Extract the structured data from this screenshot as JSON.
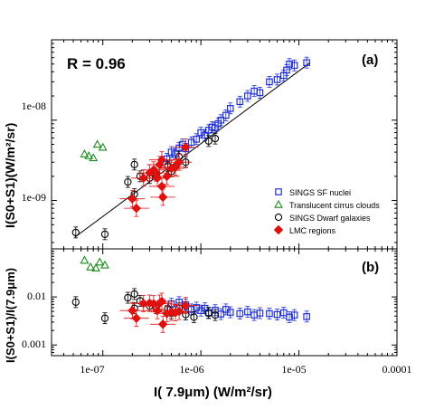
{
  "chart_data": [
    {
      "panel": "(a)",
      "type": "scatter",
      "annotation": "R = 0.96",
      "xscale": "log",
      "yscale": "log",
      "xlim": [
        3e-08,
        0.0001
      ],
      "ylim": [
        2.5e-10,
        1e-07
      ],
      "ylabel": "I(S0+S1)(W/m²/sr)",
      "yticks": [
        {
          "v": 1e-09,
          "label": "1e-09"
        },
        {
          "v": 1e-08,
          "label": "1e-08"
        }
      ],
      "fit_line": {
        "x": [
          5.2e-08,
          1.3e-05
        ],
        "y": [
          3.5e-10,
          5.2e-08
        ]
      },
      "legend": {
        "position": "lower-right",
        "entries": [
          {
            "label": "SINGS SF nuclei",
            "marker": "square",
            "color": "#1f2fd6"
          },
          {
            "label": "Translucent cirrus clouds",
            "marker": "triangle",
            "color": "#1a8c1a"
          },
          {
            "label": "SINGS Dwarf galaxies",
            "marker": "circle",
            "color": "#000000"
          },
          {
            "label": "LMC regions",
            "marker": "diamond",
            "color": "#e0100f"
          }
        ]
      },
      "series": [
        {
          "name": "SINGS SF nuclei",
          "marker": "square",
          "color": "#1f2fd6",
          "points": [
            [
              4.5e-07,
              3.3e-09
            ],
            [
              5e-07,
              4e-09
            ],
            [
              5.5e-07,
              3.8e-09
            ],
            [
              6e-07,
              4.5e-09
            ],
            [
              6.5e-07,
              5e-09
            ],
            [
              7e-07,
              4.4e-09
            ],
            [
              8e-07,
              5.3e-09
            ],
            [
              9e-07,
              5.8e-09
            ],
            [
              1e-06,
              7e-09
            ],
            [
              1.1e-06,
              6.5e-09
            ],
            [
              1.2e-06,
              7.5e-09
            ],
            [
              1.3e-06,
              8.2e-09
            ],
            [
              1.4e-06,
              8e-09
            ],
            [
              1.5e-06,
              9e-09
            ],
            [
              1.6e-06,
              1e-08
            ],
            [
              1.8e-06,
              1.15e-08
            ],
            [
              2e-06,
              1.4e-08
            ],
            [
              2.5e-06,
              1.7e-08
            ],
            [
              3e-06,
              2e-08
            ],
            [
              3.5e-06,
              2.3e-08
            ],
            [
              4e-06,
              2.2e-08
            ],
            [
              5e-06,
              3e-08
            ],
            [
              6e-06,
              3.2e-08
            ],
            [
              7e-06,
              3.6e-08
            ],
            [
              7.5e-06,
              4.2e-08
            ],
            [
              8e-06,
              5e-08
            ],
            [
              9e-06,
              4.8e-08
            ],
            [
              1.2e-05,
              5.2e-08
            ]
          ]
        },
        {
          "name": "Translucent cirrus clouds",
          "marker": "triangle",
          "color": "#1a8c1a",
          "points": [
            [
              6.5e-08,
              3.8e-09
            ],
            [
              7.2e-08,
              3.6e-09
            ],
            [
              8e-08,
              3.4e-09
            ],
            [
              8.8e-08,
              5e-09
            ],
            [
              1e-07,
              4.6e-09
            ]
          ]
        },
        {
          "name": "SINGS Dwarf galaxies",
          "marker": "circle",
          "color": "#000000",
          "points": [
            [
              5.3e-08,
              4e-10
            ],
            [
              1.05e-07,
              3.8e-10
            ],
            [
              1.8e-07,
              1.7e-09
            ],
            [
              2.1e-07,
              2.8e-09
            ],
            [
              2.4e-07,
              2e-09
            ],
            [
              3e-07,
              1.9e-09
            ],
            [
              3.5e-07,
              2.1e-09
            ],
            [
              4.6e-07,
              2.7e-09
            ],
            [
              5e-07,
              2.3e-09
            ],
            [
              6e-07,
              3.5e-09
            ],
            [
              7e-07,
              3e-09
            ],
            [
              1.2e-06,
              5.5e-09
            ],
            [
              1.4e-06,
              5.9e-09
            ],
            [
              2.1e-07,
              1.2e-09
            ]
          ]
        },
        {
          "name": "LMC regions",
          "marker": "diamond",
          "color": "#e0100f",
          "points": [
            [
              2.2e-07,
              8e-10
            ],
            [
              2e-07,
              1.05e-09
            ],
            [
              2.6e-07,
              1.9e-09
            ],
            [
              3e-07,
              2.2e-09
            ],
            [
              3.3e-07,
              2.4e-09
            ],
            [
              3.5e-07,
              2.2e-09
            ],
            [
              3.8e-07,
              2.8e-09
            ],
            [
              4e-07,
              3.2e-09
            ],
            [
              4e-07,
              1.5e-09
            ],
            [
              4.1e-07,
              1.1e-09
            ],
            [
              4.5e-07,
              2e-09
            ],
            [
              5e-07,
              2.5e-09
            ],
            [
              5.5e-07,
              2.6e-09
            ],
            [
              6e-07,
              3e-09
            ],
            [
              7e-07,
              4.6e-09
            ],
            [
              3.6e-07,
              1.9e-09
            ]
          ]
        }
      ]
    },
    {
      "panel": "(b)",
      "type": "scatter",
      "xscale": "log",
      "yscale": "log",
      "xlim": [
        3e-08,
        0.0001
      ],
      "ylim": [
        0.0006,
        0.1
      ],
      "xlabel": "I( 7.9μm) (W/m²/sr)",
      "ylabel": "I(S0+S1)/I(7.9μm)",
      "xticks": [
        {
          "v": 1e-07,
          "label": "1e-07"
        },
        {
          "v": 1e-06,
          "label": "1e-06"
        },
        {
          "v": 1e-05,
          "label": "1e-05"
        },
        {
          "v": 0.0001,
          "label": "0.0001"
        }
      ],
      "yticks": [
        {
          "v": 0.001,
          "label": "0.001"
        },
        {
          "v": 0.01,
          "label": "0.01"
        }
      ],
      "series": [
        {
          "name": "SINGS SF nuclei",
          "marker": "square",
          "color": "#1f2fd6",
          "points": [
            [
              5e-07,
              0.0072
            ],
            [
              6e-07,
              0.0078
            ],
            [
              7e-07,
              0.0069
            ],
            [
              8e-07,
              0.0055
            ],
            [
              9e-07,
              0.006
            ],
            [
              1e-06,
              0.0052
            ],
            [
              1.1e-06,
              0.0058
            ],
            [
              1.2e-06,
              0.0047
            ],
            [
              1.4e-06,
              0.0053
            ],
            [
              1.6e-06,
              0.0044
            ],
            [
              1.8e-06,
              0.0055
            ],
            [
              2e-06,
              0.0048
            ],
            [
              2.5e-06,
              0.0045
            ],
            [
              3e-06,
              0.0049
            ],
            [
              3.5e-06,
              0.0042
            ],
            [
              4e-06,
              0.0046
            ],
            [
              5e-06,
              0.0045
            ],
            [
              6e-06,
              0.0043
            ],
            [
              7e-06,
              0.0047
            ],
            [
              8e-06,
              0.0038
            ],
            [
              9e-06,
              0.0042
            ],
            [
              1.2e-05,
              0.0039
            ]
          ]
        },
        {
          "name": "Translucent cirrus clouds",
          "marker": "triangle",
          "color": "#1a8c1a",
          "points": [
            [
              6.5e-08,
              0.058
            ],
            [
              7.5e-08,
              0.042
            ],
            [
              8.5e-08,
              0.04
            ],
            [
              9.3e-08,
              0.053
            ],
            [
              1.05e-07,
              0.046
            ]
          ]
        },
        {
          "name": "SINGS Dwarf galaxies",
          "marker": "circle",
          "color": "#000000",
          "points": [
            [
              5.3e-08,
              0.0078
            ],
            [
              1.05e-07,
              0.0036
            ],
            [
              1.8e-07,
              0.0096
            ],
            [
              2.1e-07,
              0.0115
            ],
            [
              2.4e-07,
              0.0083
            ],
            [
              3e-07,
              0.0065
            ],
            [
              3.5e-07,
              0.0058
            ],
            [
              4.6e-07,
              0.0057
            ],
            [
              5e-07,
              0.0046
            ],
            [
              6e-07,
              0.0058
            ],
            [
              7e-07,
              0.0043
            ],
            [
              8.5e-07,
              0.0038
            ],
            [
              1.2e-06,
              0.0046
            ],
            [
              1.4e-06,
              0.0042
            ],
            [
              2.1e-07,
              0.0058
            ]
          ]
        },
        {
          "name": "LMC regions",
          "marker": "diamond",
          "color": "#e0100f",
          "points": [
            [
              2e-07,
              0.0052
            ],
            [
              2.2e-07,
              0.0036
            ],
            [
              2.6e-07,
              0.0073
            ],
            [
              3e-07,
              0.0074
            ],
            [
              3.3e-07,
              0.0072
            ],
            [
              3.6e-07,
              0.0052
            ],
            [
              3.8e-07,
              0.0074
            ],
            [
              4e-07,
              0.0081
            ],
            [
              4.1e-07,
              0.0027
            ],
            [
              4.5e-07,
              0.0045
            ],
            [
              5e-07,
              0.0048
            ],
            [
              5.5e-07,
              0.0047
            ],
            [
              6e-07,
              0.005
            ],
            [
              7e-07,
              0.0066
            ]
          ]
        }
      ]
    }
  ]
}
